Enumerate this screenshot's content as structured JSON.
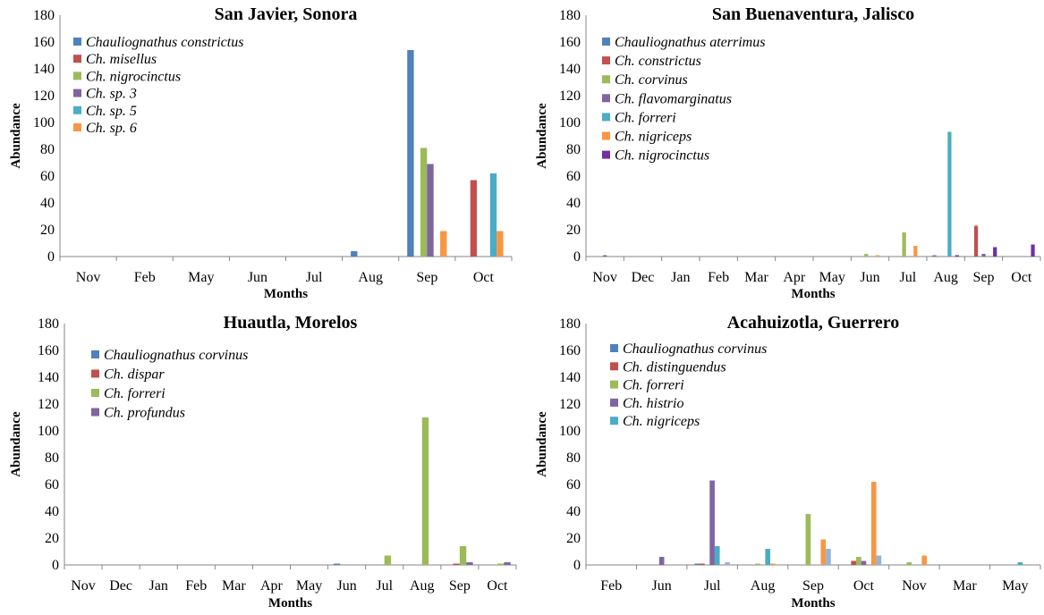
{
  "colors": [
    "#4F81BD",
    "#C0504D",
    "#9BBB59",
    "#8064A2",
    "#4BACC6",
    "#F79646",
    "#7030A0",
    "#95B3D7"
  ],
  "ylabel": "Abundance",
  "xlabel": "Months",
  "chart_data": [
    {
      "type": "bar",
      "title": "San Javier, Sonora",
      "xlabel": "Months",
      "ylabel": "Abundance",
      "ylim": [
        0,
        180
      ],
      "yticks": [
        0,
        20,
        40,
        60,
        80,
        100,
        120,
        140,
        160,
        180
      ],
      "legend_position": "top-left",
      "categories": [
        "Nov",
        "Feb",
        "May",
        "Jun",
        "Jul",
        "Aug",
        "Sep",
        "Oct"
      ],
      "series": [
        {
          "name": "Chauliognathus constrictus",
          "values": [
            0,
            0,
            0,
            0,
            0,
            4,
            154,
            0
          ]
        },
        {
          "name": "Ch. misellus",
          "values": [
            0,
            0,
            0,
            0,
            0,
            0,
            0,
            57
          ]
        },
        {
          "name": "Ch. nigrocinctus",
          "values": [
            0,
            0,
            0,
            0,
            0,
            0,
            81,
            0
          ]
        },
        {
          "name": "Ch. sp. 3",
          "values": [
            0,
            0,
            0,
            0,
            0,
            0,
            69,
            0
          ]
        },
        {
          "name": "Ch. sp. 5",
          "values": [
            0,
            0,
            0,
            0,
            0,
            0,
            0,
            62
          ]
        },
        {
          "name": "Ch. sp. 6",
          "values": [
            0,
            0,
            0,
            0,
            0,
            0,
            19,
            19
          ]
        }
      ]
    },
    {
      "type": "bar",
      "title": "San Buenaventura, Jalisco",
      "xlabel": "Months",
      "ylabel": "Abundance",
      "ylim": [
        0,
        180
      ],
      "yticks": [
        0,
        20,
        40,
        60,
        80,
        100,
        120,
        140,
        160,
        180
      ],
      "legend_position": "top-left",
      "categories": [
        "Nov",
        "Dec",
        "Jan",
        "Feb",
        "Mar",
        "Apr",
        "May",
        "Jun",
        "Jul",
        "Aug",
        "Sep",
        "Oct"
      ],
      "series": [
        {
          "name": "Chauliognathus aterrimus",
          "values": [
            0,
            0,
            0,
            0,
            0,
            0,
            0,
            0,
            0,
            1,
            0,
            0
          ]
        },
        {
          "name": "Ch. constrictus",
          "values": [
            0,
            0,
            0,
            0,
            0,
            0,
            0,
            0,
            0,
            0,
            23,
            0
          ]
        },
        {
          "name": "Ch. corvinus",
          "values": [
            0,
            0,
            0,
            0,
            0,
            0,
            0,
            2,
            18,
            0,
            0,
            0
          ]
        },
        {
          "name": "Ch. flavomarginatus",
          "values": [
            1,
            0,
            0,
            0,
            0,
            0,
            0,
            0,
            0,
            0,
            2,
            0
          ]
        },
        {
          "name": "Ch. forreri",
          "values": [
            0,
            0,
            0,
            0,
            0,
            0,
            0,
            0,
            0,
            93,
            0,
            0
          ]
        },
        {
          "name": "Ch. nigriceps",
          "values": [
            0,
            0,
            0,
            0,
            0,
            0,
            0,
            1,
            8,
            0,
            0,
            0
          ]
        },
        {
          "name": "Ch. nigrocinctus",
          "values": [
            0,
            0,
            0,
            0,
            0,
            0,
            0,
            0,
            0,
            1,
            7,
            9
          ]
        }
      ]
    },
    {
      "type": "bar",
      "title": "Huautla, Morelos",
      "xlabel": "Months",
      "ylabel": "Abundance",
      "ylim": [
        0,
        180
      ],
      "yticks": [
        0,
        20,
        40,
        60,
        80,
        100,
        120,
        140,
        160,
        180
      ],
      "legend_position": "top-left",
      "categories": [
        "Nov",
        "Dec",
        "Jan",
        "Feb",
        "Mar",
        "Apr",
        "May",
        "Jun",
        "Jul",
        "Aug",
        "Sep",
        "Oct"
      ],
      "series": [
        {
          "name": "Chauliognathus corvinus",
          "values": [
            0,
            0,
            0,
            0,
            0,
            0,
            0,
            1,
            0,
            0,
            0,
            0
          ]
        },
        {
          "name": "Ch. dispar",
          "values": [
            0,
            0,
            0,
            0,
            0,
            0,
            0,
            0,
            0,
            0,
            1,
            0
          ]
        },
        {
          "name": "Ch. forreri",
          "values": [
            0,
            0,
            0,
            0,
            0,
            0,
            0,
            0,
            7,
            110,
            14,
            1
          ]
        },
        {
          "name": "Ch. profundus",
          "values": [
            0,
            0,
            0,
            0,
            0,
            0,
            0,
            0,
            0,
            0,
            2,
            2
          ]
        }
      ]
    },
    {
      "type": "bar",
      "title": "Acahuizotla, Guerrero",
      "xlabel": "Months",
      "ylabel": "Abundance",
      "ylim": [
        0,
        180
      ],
      "yticks": [
        0,
        20,
        40,
        60,
        80,
        100,
        120,
        140,
        160,
        180
      ],
      "legend_position": "top-left",
      "categories": [
        "Feb",
        "Jun",
        "Jul",
        "Aug",
        "Sep",
        "Oct",
        "Nov",
        "Mar",
        "May"
      ],
      "series": [
        {
          "name": "Chauliognathus corvinus",
          "values": [
            0,
            0,
            1,
            0,
            0,
            0,
            0,
            0,
            0
          ]
        },
        {
          "name": "Ch. distinguendus",
          "values": [
            0,
            0,
            1,
            0,
            0,
            3,
            0,
            0,
            0
          ]
        },
        {
          "name": "Ch. forreri",
          "values": [
            0,
            0,
            0,
            1,
            38,
            6,
            2,
            0,
            0
          ]
        },
        {
          "name": "Ch. histrio",
          "values": [
            0,
            6,
            63,
            0,
            0,
            3,
            0,
            0,
            0
          ]
        },
        {
          "name": "Ch. nigriceps",
          "values": [
            0,
            0,
            14,
            12,
            0,
            0,
            0,
            0,
            2
          ]
        },
        {
          "name": "",
          "values": [
            0,
            0,
            0,
            1,
            19,
            62,
            7,
            0,
            0
          ]
        },
        {
          "name": "",
          "values": [
            0,
            0,
            2,
            0,
            12,
            7,
            0,
            0,
            0
          ]
        }
      ],
      "series_colors": [
        "#4F81BD",
        "#C0504D",
        "#9BBB59",
        "#8064A2",
        "#4BACC6",
        "#F79646",
        "#95B3D7"
      ]
    }
  ]
}
